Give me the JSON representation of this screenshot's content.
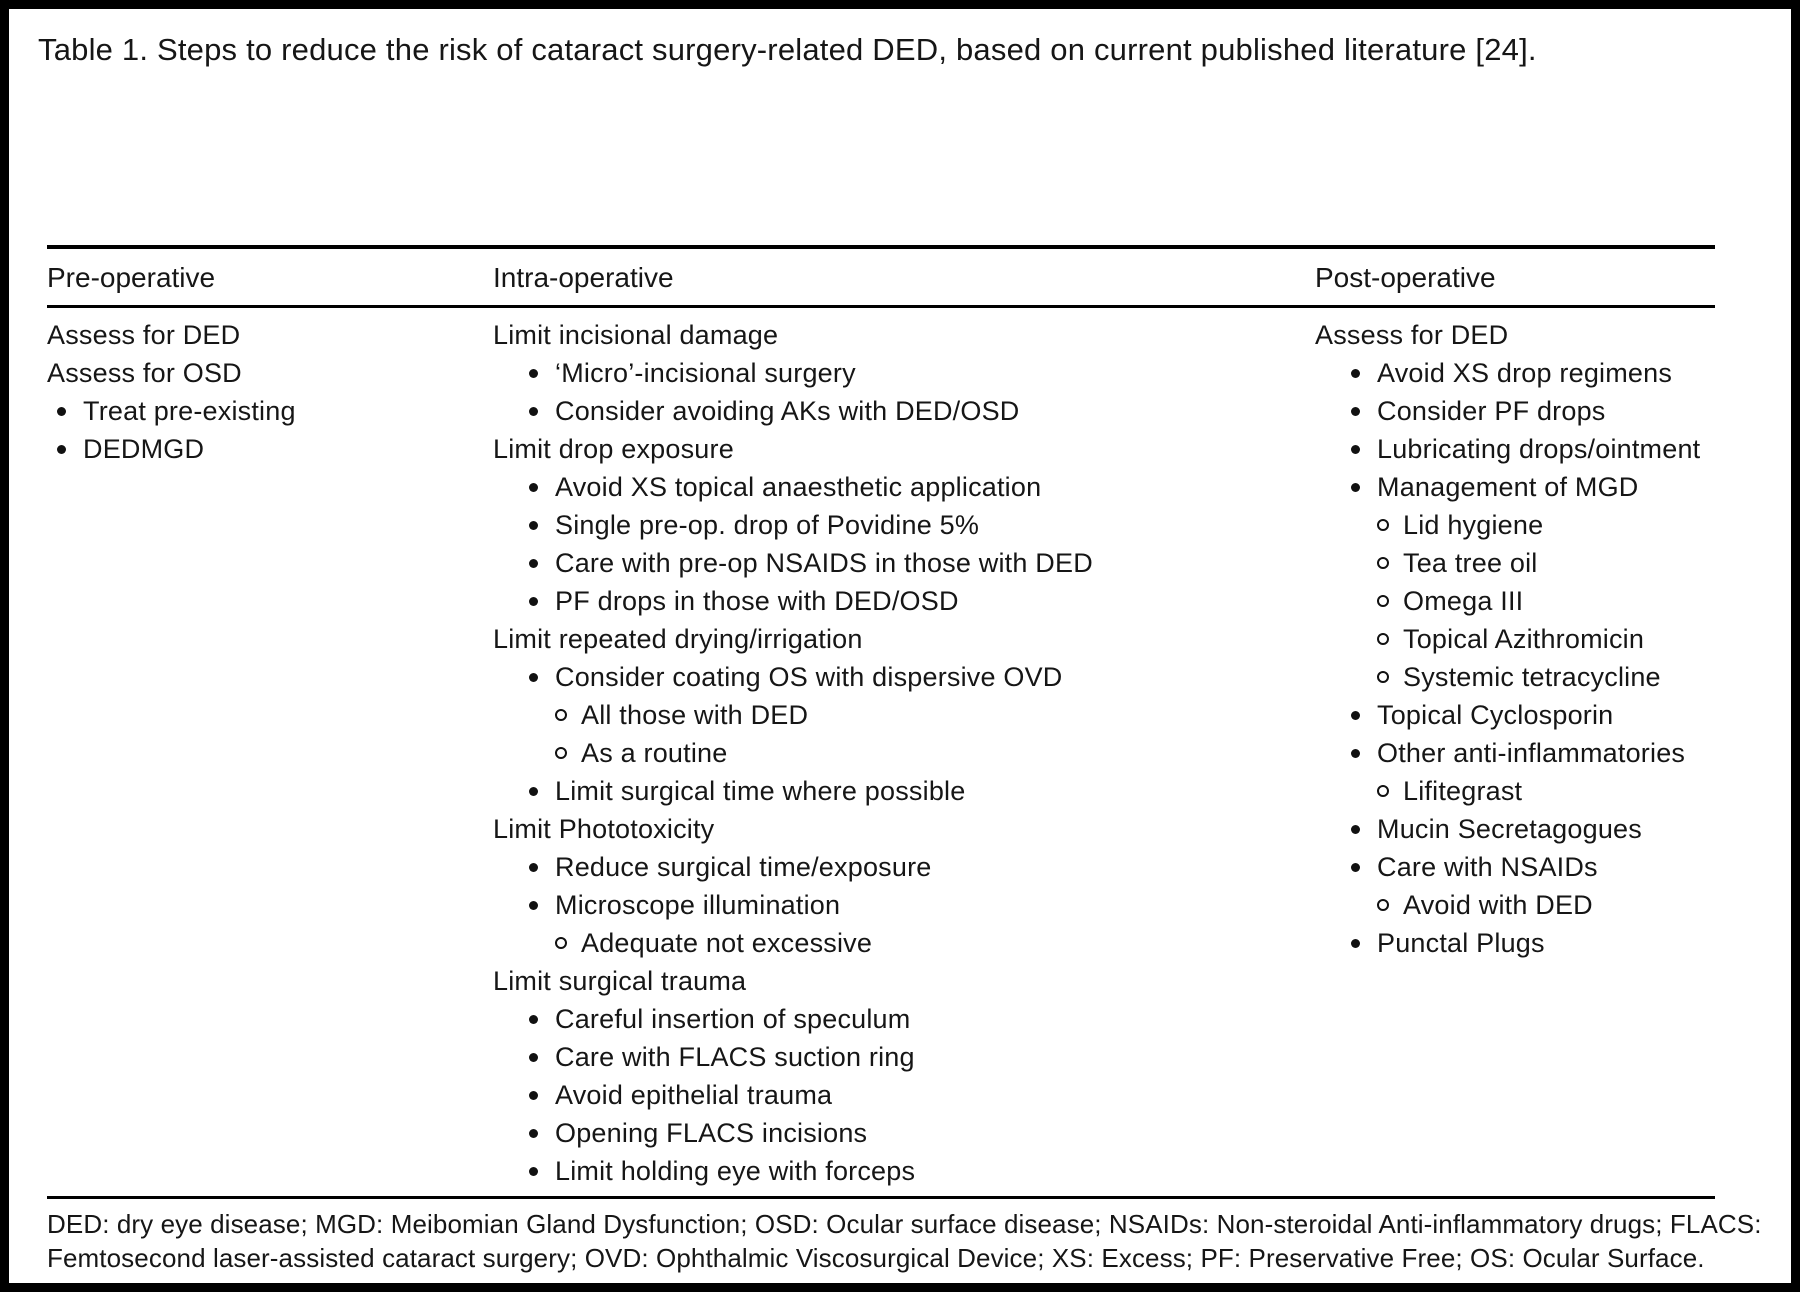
{
  "title": "Table 1. Steps to reduce the risk of cataract surgery-related DED, based on current published literature [24].",
  "columns": [
    {
      "header": "Pre-operative",
      "items": [
        {
          "level": 0,
          "text": "Assess for DED"
        },
        {
          "level": 0,
          "text": "Assess for OSD"
        },
        {
          "level": 1,
          "text": "Treat pre-existing"
        },
        {
          "level": 1,
          "text": "DEDMGD"
        }
      ]
    },
    {
      "header": "Intra-operative",
      "items": [
        {
          "level": 0,
          "text": "Limit incisional damage"
        },
        {
          "level": 1,
          "text": "‘Micro’-incisional surgery"
        },
        {
          "level": 1,
          "text": "Consider avoiding AKs with DED/OSD"
        },
        {
          "level": 0,
          "text": "Limit drop exposure"
        },
        {
          "level": 1,
          "text": "Avoid XS topical anaesthetic application"
        },
        {
          "level": 1,
          "text": "Single pre-op. drop of Povidine 5%"
        },
        {
          "level": 1,
          "text": "Care with pre-op NSAIDS in those with DED"
        },
        {
          "level": 1,
          "text": "PF drops in those with DED/OSD"
        },
        {
          "level": 0,
          "text": "Limit repeated drying/irrigation"
        },
        {
          "level": 1,
          "text": "Consider coating OS with dispersive OVD"
        },
        {
          "level": 2,
          "text": "All those with DED"
        },
        {
          "level": 2,
          "text": "As a routine"
        },
        {
          "level": 1,
          "text": "Limit surgical time where possible"
        },
        {
          "level": 0,
          "text": "Limit Phototoxicity"
        },
        {
          "level": 1,
          "text": "Reduce surgical time/exposure"
        },
        {
          "level": 1,
          "text": "Microscope illumination"
        },
        {
          "level": 2,
          "text": "Adequate not excessive"
        },
        {
          "level": 0,
          "text": "Limit surgical trauma"
        },
        {
          "level": 1,
          "text": "Careful insertion of speculum"
        },
        {
          "level": 1,
          "text": "Care with FLACS suction ring"
        },
        {
          "level": 1,
          "text": "Avoid epithelial trauma"
        },
        {
          "level": 1,
          "text": "Opening FLACS incisions"
        },
        {
          "level": 1,
          "text": "Limit holding eye with forceps"
        }
      ]
    },
    {
      "header": "Post-operative",
      "items": [
        {
          "level": 0,
          "text": "Assess for DED"
        },
        {
          "level": 1,
          "text": "Avoid XS drop regimens"
        },
        {
          "level": 1,
          "text": "Consider PF drops"
        },
        {
          "level": 1,
          "text": "Lubricating drops/ointment"
        },
        {
          "level": 1,
          "text": "Management of MGD"
        },
        {
          "level": 2,
          "text": "Lid hygiene"
        },
        {
          "level": 2,
          "text": "Tea tree oil"
        },
        {
          "level": 2,
          "text": "Omega III"
        },
        {
          "level": 2,
          "text": "Topical Azithromicin"
        },
        {
          "level": 2,
          "text": "Systemic tetracycline"
        },
        {
          "level": 1,
          "text": "Topical Cyclosporin"
        },
        {
          "level": 1,
          "text": "Other anti-inflammatories"
        },
        {
          "level": 2,
          "text": "Lifitegrast"
        },
        {
          "level": 1,
          "text": "Mucin Secretagogues"
        },
        {
          "level": 1,
          "text": "Care with NSAIDs"
        },
        {
          "level": 2,
          "text": "Avoid with DED"
        },
        {
          "level": 1,
          "text": "Punctal Plugs"
        }
      ]
    }
  ],
  "footnote_lines": [
    "DED: dry eye disease; MGD: Meibomian Gland Dysfunction; OSD: Ocular surface disease; NSAIDs: Non-steroidal Anti-inflammatory drugs; FLACS:",
    "Femtosecond laser-assisted cataract surgery; OVD: Ophthalmic Viscosurgical Device; XS: Excess; PF: Preservative Free; OS: Ocular Surface."
  ],
  "colors": {
    "text": "#161616",
    "rule": "#000000",
    "background": "#ffffff"
  }
}
